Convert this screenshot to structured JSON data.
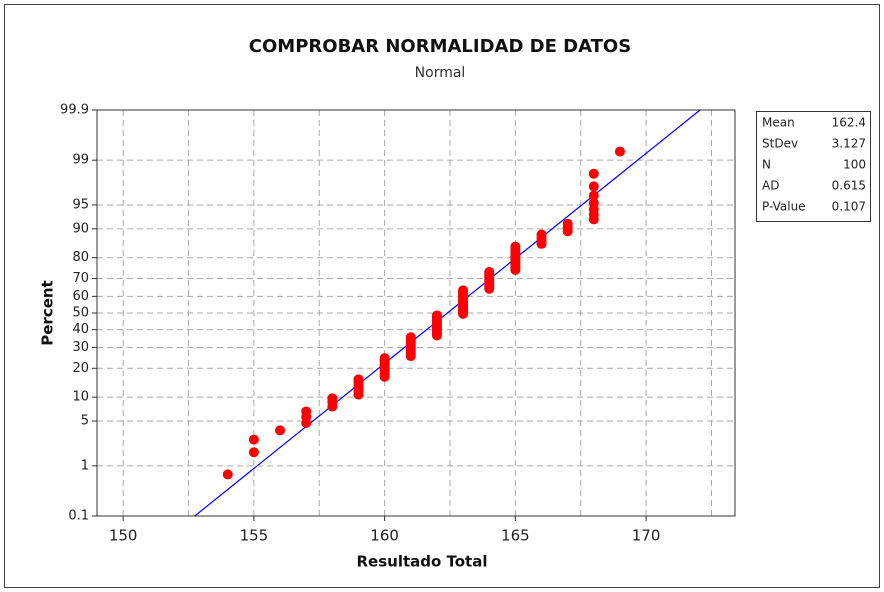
{
  "chart_data": {
    "type": "probability",
    "title": "COMPROBAR NORMALIDAD DE DATOS",
    "subtitle": "Normal",
    "xlabel": "Resultado Total",
    "ylabel": "Percent",
    "xlim": [
      149,
      173.4
    ],
    "xticks": [
      150,
      155,
      160,
      165,
      170
    ],
    "x_minor_ticks": [
      152.5,
      157.5,
      162.5,
      167.5,
      172.5
    ],
    "ylim": [
      0.1,
      99.9
    ],
    "yticks": [
      0.1,
      1,
      5,
      10,
      20,
      30,
      40,
      50,
      60,
      70,
      80,
      90,
      95,
      99,
      99.9
    ],
    "grid": true,
    "point_color": "#ff0000",
    "line_color": "#0000ff",
    "x": [
      154,
      155,
      155,
      156,
      157,
      157,
      157,
      158,
      158,
      158,
      159,
      159,
      159,
      159,
      159,
      159,
      160,
      160,
      160,
      160,
      160,
      160,
      160,
      160,
      160,
      161,
      161,
      161,
      161,
      161,
      161,
      161,
      161,
      161,
      161,
      161,
      162,
      162,
      162,
      162,
      162,
      162,
      162,
      162,
      162,
      162,
      162,
      162,
      162,
      163,
      163,
      163,
      163,
      163,
      163,
      163,
      163,
      163,
      163,
      163,
      163,
      163,
      163,
      163,
      164,
      164,
      164,
      164,
      164,
      164,
      164,
      164,
      164,
      164,
      165,
      165,
      165,
      165,
      165,
      165,
      165,
      165,
      165,
      165,
      165,
      166,
      166,
      166,
      166,
      167,
      167,
      167,
      168,
      168,
      168,
      168,
      168,
      168,
      168,
      169
    ],
    "values": [
      0.7,
      1.7,
      2.7,
      3.7,
      4.7,
      5.7,
      6.7,
      7.7,
      8.7,
      9.7,
      10.7,
      11.7,
      12.6,
      13.6,
      14.6,
      15.6,
      16.6,
      17.6,
      18.6,
      19.6,
      20.6,
      21.6,
      22.6,
      23.6,
      24.6,
      25.6,
      26.6,
      27.6,
      28.6,
      29.6,
      30.6,
      31.6,
      32.6,
      33.6,
      34.6,
      35.6,
      36.6,
      37.5,
      38.5,
      39.5,
      40.5,
      41.5,
      42.5,
      43.5,
      44.5,
      45.5,
      46.5,
      47.5,
      48.5,
      49.5,
      50.5,
      51.5,
      52.5,
      53.5,
      54.5,
      55.5,
      56.5,
      57.5,
      58.5,
      59.5,
      60.5,
      61.5,
      62.5,
      63.5,
      64.4,
      65.4,
      66.4,
      67.4,
      68.4,
      69.4,
      70.4,
      71.4,
      72.4,
      73.4,
      74.4,
      75.4,
      76.4,
      77.4,
      78.4,
      79.4,
      80.4,
      81.4,
      82.4,
      83.4,
      84.4,
      85.4,
      86.4,
      87.4,
      88.4,
      89.3,
      90.3,
      91.3,
      92.3,
      93.3,
      94.3,
      95.3,
      96.3,
      97.3,
      98.3,
      99.3
    ],
    "stats": [
      {
        "label": "Mean",
        "value": 162.4
      },
      {
        "label": "StDev",
        "value": 3.127
      },
      {
        "label": "N",
        "value": 100
      },
      {
        "label": "AD",
        "value": 0.615
      },
      {
        "label": "P-Value",
        "value": 0.107
      }
    ]
  }
}
